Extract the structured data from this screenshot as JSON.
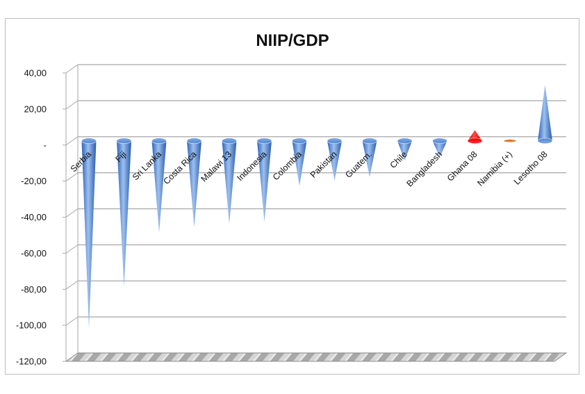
{
  "chart_data": {
    "type": "bar",
    "subtype": "3d-cone",
    "title": "NIIP/GDP",
    "xlabel": "",
    "ylabel": "",
    "ylim": [
      -120,
      40
    ],
    "y_ticks": [
      40,
      20,
      0,
      -20,
      -40,
      -60,
      -80,
      -100,
      -120
    ],
    "y_tick_labels": [
      "40,00",
      "20,00",
      "-",
      "-20,00",
      "-40,00",
      "-60,00",
      "-80,00",
      "-100,00",
      "-120,00"
    ],
    "grid": true,
    "legend": "none",
    "categories": [
      "Serbia",
      "Fiji",
      "Sri Lanka",
      "Costa Rica",
      "Malawi 13",
      "Indonesia",
      "Colombia",
      "Pakistan",
      "Guatem.",
      "Chile",
      "Bangladesh",
      "Ghana 08",
      "Namibia (+)",
      "Lesotho 08"
    ],
    "values": [
      -104,
      -81,
      -51,
      -48,
      -46,
      -45,
      -25,
      -22,
      -20,
      -11,
      -9,
      6,
      1,
      31
    ],
    "colors": {
      "default": "#5b8fd6",
      "Ghana 08": "#ff0000",
      "Namibia (+)": "#e06a10",
      "gridline": "#a6a6a6",
      "floor": "#9a9a9a"
    }
  }
}
